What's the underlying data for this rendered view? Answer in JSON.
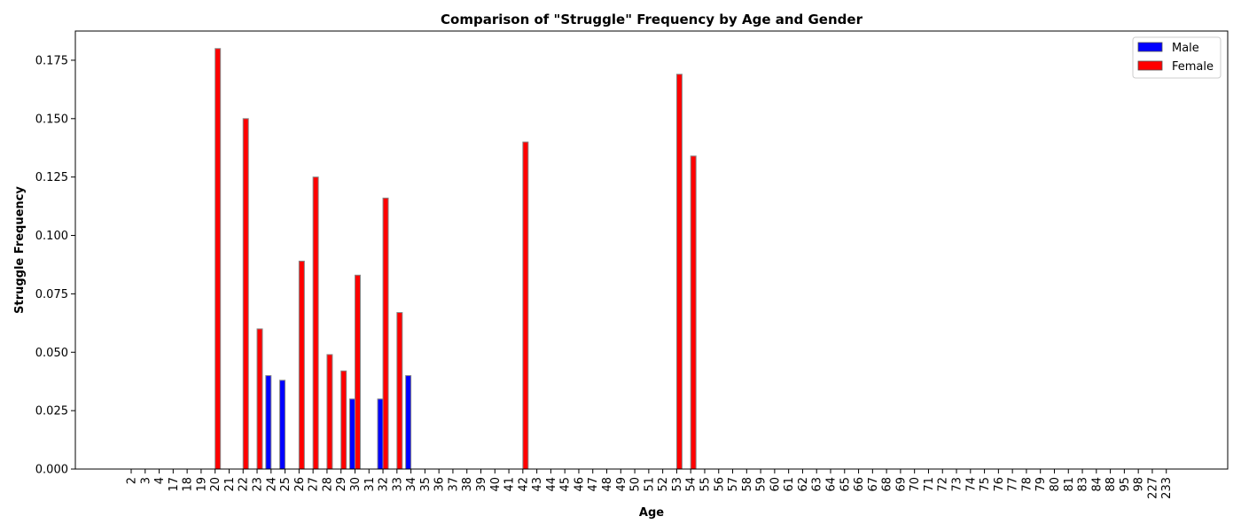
{
  "chart_data": {
    "type": "bar",
    "title": "Comparison of \"Struggle\" Frequency by Age and Gender",
    "xlabel": "Age",
    "ylabel": "Struggle Frequency",
    "ylim": [
      0,
      0.1875
    ],
    "yticks": [
      "0.000",
      "0.025",
      "0.050",
      "0.075",
      "0.100",
      "0.125",
      "0.150",
      "0.175"
    ],
    "grid": false,
    "legend_position": "top-right",
    "categories": [
      "2",
      "3",
      "4",
      "17",
      "18",
      "19",
      "20",
      "21",
      "22",
      "23",
      "24",
      "25",
      "26",
      "27",
      "28",
      "29",
      "30",
      "31",
      "32",
      "33",
      "34",
      "35",
      "36",
      "37",
      "38",
      "39",
      "40",
      "41",
      "42",
      "43",
      "44",
      "45",
      "46",
      "47",
      "48",
      "49",
      "50",
      "51",
      "52",
      "53",
      "54",
      "55",
      "56",
      "57",
      "58",
      "59",
      "60",
      "61",
      "62",
      "63",
      "64",
      "65",
      "66",
      "67",
      "68",
      "69",
      "70",
      "71",
      "72",
      "73",
      "74",
      "75",
      "76",
      "77",
      "78",
      "79",
      "80",
      "81",
      "83",
      "84",
      "88",
      "95",
      "98",
      "227",
      "233"
    ],
    "series": [
      {
        "name": "Male",
        "color": "#0000ff",
        "values": [
          0,
          0,
          0,
          0,
          0,
          0,
          0,
          0,
          0,
          0,
          0.04,
          0.038,
          0,
          0,
          0,
          0,
          0.03,
          0,
          0.03,
          0,
          0.04,
          0,
          0,
          0,
          0,
          0,
          0,
          0,
          0,
          0,
          0,
          0,
          0,
          0,
          0,
          0,
          0,
          0,
          0,
          0,
          0,
          0,
          0,
          0,
          0,
          0,
          0,
          0,
          0,
          0,
          0,
          0,
          0,
          0,
          0,
          0,
          0,
          0,
          0,
          0,
          0,
          0,
          0,
          0,
          0,
          0,
          0,
          0,
          0,
          0,
          0,
          0,
          0,
          0,
          0
        ]
      },
      {
        "name": "Female",
        "color": "#ff0000",
        "values": [
          0,
          0,
          0,
          0,
          0,
          0,
          0.18,
          0,
          0.15,
          0.06,
          0,
          0,
          0.089,
          0.125,
          0.049,
          0.042,
          0.083,
          0,
          0.116,
          0.067,
          0,
          0,
          0,
          0,
          0,
          0,
          0,
          0,
          0.14,
          0,
          0,
          0,
          0,
          0,
          0,
          0,
          0,
          0,
          0,
          0.169,
          0.134,
          0,
          0,
          0,
          0,
          0,
          0,
          0,
          0,
          0,
          0,
          0,
          0,
          0,
          0,
          0,
          0,
          0,
          0,
          0,
          0,
          0,
          0,
          0,
          0,
          0,
          0,
          0,
          0,
          0,
          0,
          0,
          0,
          0,
          0
        ]
      }
    ]
  }
}
